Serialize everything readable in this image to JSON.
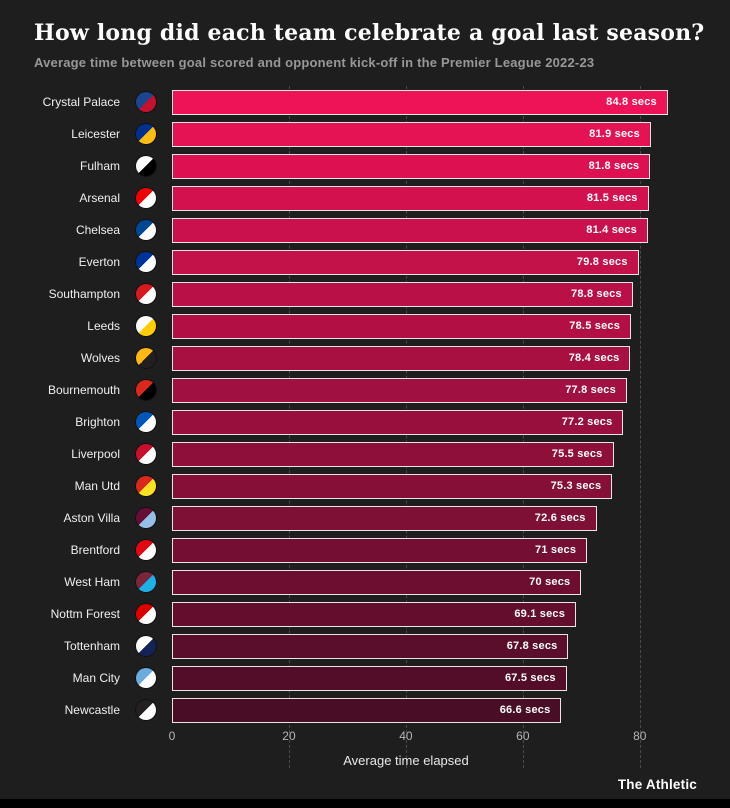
{
  "header": {
    "title": "How long did each team celebrate a goal last season?",
    "subtitle": "Average time between goal scored and opponent kick-off in the Premier League 2022-23"
  },
  "chart_data": {
    "type": "bar",
    "orientation": "horizontal",
    "title": "How long did each team celebrate a goal last season?",
    "subtitle": "Average time between goal scored and opponent kick-off in the Premier League 2022-23",
    "xlabel": "Average time elapsed",
    "xticks": [
      0,
      20,
      40,
      60,
      80
    ],
    "xmax": 92,
    "grid": "dashed-vertical",
    "legend": "none",
    "bar_color_top": "#ee1257",
    "bar_color_bottom": "#4a0d26",
    "bar_border_color": "#e6e6e6",
    "background_color": "#1e1e1e",
    "teams": [
      {
        "name": "Crystal Palace",
        "value": 84.8,
        "label": "84.8 secs",
        "crest": [
          "#1b458f",
          "#c4122e"
        ]
      },
      {
        "name": "Leicester",
        "value": 81.9,
        "label": "81.9 secs",
        "crest": [
          "#003090",
          "#fdbe11"
        ]
      },
      {
        "name": "Fulham",
        "value": 81.8,
        "label": "81.8 secs",
        "crest": [
          "#ffffff",
          "#000000"
        ]
      },
      {
        "name": "Arsenal",
        "value": 81.5,
        "label": "81.5 secs",
        "crest": [
          "#ef0107",
          "#ffffff"
        ]
      },
      {
        "name": "Chelsea",
        "value": 81.4,
        "label": "81.4 secs",
        "crest": [
          "#034694",
          "#ffffff"
        ]
      },
      {
        "name": "Everton",
        "value": 79.8,
        "label": "79.8 secs",
        "crest": [
          "#003399",
          "#ffffff"
        ]
      },
      {
        "name": "Southampton",
        "value": 78.8,
        "label": "78.8 secs",
        "crest": [
          "#d71920",
          "#ffffff"
        ]
      },
      {
        "name": "Leeds",
        "value": 78.5,
        "label": "78.5 secs",
        "crest": [
          "#ffffff",
          "#ffcd00"
        ]
      },
      {
        "name": "Wolves",
        "value": 78.4,
        "label": "78.4 secs",
        "crest": [
          "#fdb913",
          "#231f20"
        ]
      },
      {
        "name": "Bournemouth",
        "value": 77.8,
        "label": "77.8 secs",
        "crest": [
          "#da291c",
          "#000000"
        ]
      },
      {
        "name": "Brighton",
        "value": 77.2,
        "label": "77.2 secs",
        "crest": [
          "#0057b8",
          "#ffffff"
        ]
      },
      {
        "name": "Liverpool",
        "value": 75.5,
        "label": "75.5 secs",
        "crest": [
          "#c8102e",
          "#ffffff"
        ]
      },
      {
        "name": "Man Utd",
        "value": 75.3,
        "label": "75.3 secs",
        "crest": [
          "#da291c",
          "#fbe122"
        ]
      },
      {
        "name": "Aston Villa",
        "value": 72.6,
        "label": "72.6 secs",
        "crest": [
          "#670e36",
          "#95bfe5"
        ]
      },
      {
        "name": "Brentford",
        "value": 71.0,
        "label": "71 secs",
        "crest": [
          "#e30613",
          "#ffffff"
        ]
      },
      {
        "name": "West Ham",
        "value": 70.0,
        "label": "70 secs",
        "crest": [
          "#7a263a",
          "#1bb1e7"
        ]
      },
      {
        "name": "Nottm Forest",
        "value": 69.1,
        "label": "69.1 secs",
        "crest": [
          "#dd0000",
          "#ffffff"
        ]
      },
      {
        "name": "Tottenham",
        "value": 67.8,
        "label": "67.8 secs",
        "crest": [
          "#ffffff",
          "#132257"
        ]
      },
      {
        "name": "Man City",
        "value": 67.5,
        "label": "67.5 secs",
        "crest": [
          "#6cabdd",
          "#ffffff"
        ]
      },
      {
        "name": "Newcastle",
        "value": 66.6,
        "label": "66.6 secs",
        "crest": [
          "#241f20",
          "#ffffff"
        ]
      }
    ]
  },
  "footer": {
    "brand": "The Athletic"
  }
}
